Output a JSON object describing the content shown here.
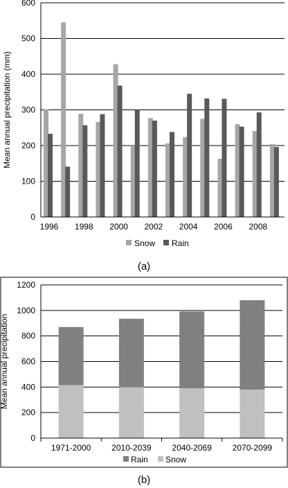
{
  "chart_data": [
    {
      "type": "bar",
      "caption": "(a)",
      "ylabel": "Mean annual precipitation (mm)",
      "xlabel": "",
      "ylim": [
        0,
        600
      ],
      "yticks": [
        "0",
        "100",
        "200",
        "300",
        "400",
        "500",
        "600"
      ],
      "x": [
        1996,
        1997,
        1998,
        1999,
        2000,
        2001,
        2002,
        2003,
        2004,
        2005,
        2006,
        2007,
        2008,
        2009
      ],
      "xtick_labels": [
        "1996",
        "1998",
        "2000",
        "2002",
        "2004",
        "2006",
        "2008"
      ],
      "grid": true,
      "legend_position": "bottom",
      "series": [
        {
          "name": "Snow",
          "color": "#a6a6a6",
          "values": [
            302,
            545,
            289,
            266,
            428,
            200,
            277,
            206,
            224,
            275,
            163,
            260,
            241,
            204
          ]
        },
        {
          "name": "Rain",
          "color": "#595959",
          "values": [
            233,
            141,
            257,
            288,
            368,
            300,
            270,
            238,
            345,
            332,
            331,
            253,
            293,
            196
          ]
        }
      ]
    },
    {
      "type": "bar",
      "stacked": true,
      "caption": "(b)",
      "ylabel": "Mean annual precipitation",
      "xlabel": "",
      "ylim": [
        0,
        1200
      ],
      "yticks": [
        "0",
        "200",
        "400",
        "600",
        "800",
        "1000",
        "1200"
      ],
      "categories": [
        "1971-2000",
        "2010-2039",
        "2040-2069",
        "2070-2099"
      ],
      "grid": true,
      "legend_position": "bottom",
      "legend_order": [
        "Rain",
        "Snow"
      ],
      "series": [
        {
          "name": "Snow",
          "color": "#c0c0c0",
          "values": [
            415,
            400,
            390,
            380
          ]
        },
        {
          "name": "Rain",
          "color": "#808080",
          "values": [
            455,
            535,
            602,
            700
          ]
        }
      ]
    }
  ]
}
